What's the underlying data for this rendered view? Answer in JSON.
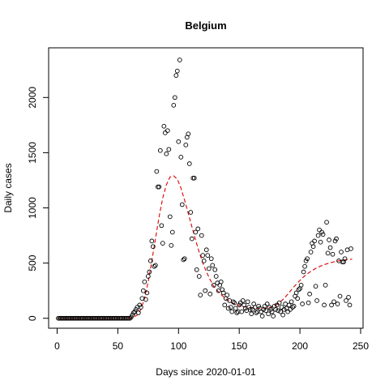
{
  "chart_data": {
    "type": "scatter",
    "title": "Belgium",
    "xlabel": "Days since 2020-01-01",
    "ylabel": "Daily cases",
    "xlim": [
      -7,
      252
    ],
    "ylim": [
      -90,
      2450
    ],
    "xticks": [
      0,
      50,
      100,
      150,
      200,
      250
    ],
    "yticks": [
      0,
      500,
      1000,
      1500,
      2000
    ],
    "grid": false,
    "series": [
      {
        "kind": "points",
        "marker": "open-circle",
        "color": "#000000",
        "points": [
          [
            1,
            0
          ],
          [
            2,
            0
          ],
          [
            3,
            0
          ],
          [
            4,
            0
          ],
          [
            5,
            0
          ],
          [
            6,
            0
          ],
          [
            7,
            0
          ],
          [
            8,
            0
          ],
          [
            9,
            0
          ],
          [
            10,
            0
          ],
          [
            11,
            0
          ],
          [
            12,
            0
          ],
          [
            13,
            0
          ],
          [
            14,
            0
          ],
          [
            15,
            0
          ],
          [
            16,
            0
          ],
          [
            17,
            0
          ],
          [
            18,
            0
          ],
          [
            19,
            0
          ],
          [
            20,
            0
          ],
          [
            21,
            0
          ],
          [
            22,
            0
          ],
          [
            23,
            0
          ],
          [
            24,
            0
          ],
          [
            25,
            0
          ],
          [
            26,
            0
          ],
          [
            27,
            0
          ],
          [
            28,
            0
          ],
          [
            29,
            0
          ],
          [
            30,
            0
          ],
          [
            31,
            0
          ],
          [
            32,
            0
          ],
          [
            33,
            0
          ],
          [
            34,
            0
          ],
          [
            35,
            0
          ],
          [
            36,
            0
          ],
          [
            37,
            0
          ],
          [
            38,
            0
          ],
          [
            39,
            0
          ],
          [
            40,
            0
          ],
          [
            41,
            0
          ],
          [
            42,
            0
          ],
          [
            43,
            0
          ],
          [
            44,
            0
          ],
          [
            45,
            0
          ],
          [
            46,
            0
          ],
          [
            47,
            0
          ],
          [
            48,
            0
          ],
          [
            49,
            0
          ],
          [
            50,
            0
          ],
          [
            51,
            0
          ],
          [
            52,
            0
          ],
          [
            53,
            0
          ],
          [
            54,
            0
          ],
          [
            55,
            0
          ],
          [
            56,
            0
          ],
          [
            57,
            0
          ],
          [
            58,
            0
          ],
          [
            59,
            0
          ],
          [
            60,
            0
          ],
          [
            61,
            10
          ],
          [
            62,
            30
          ],
          [
            63,
            50
          ],
          [
            64,
            60
          ],
          [
            65,
            80
          ],
          [
            66,
            100
          ],
          [
            67,
            50
          ],
          [
            68,
            120
          ],
          [
            69,
            100
          ],
          [
            70,
            180
          ],
          [
            71,
            250
          ],
          [
            72,
            330
          ],
          [
            73,
            170
          ],
          [
            74,
            230
          ],
          [
            75,
            380
          ],
          [
            76,
            420
          ],
          [
            77,
            520
          ],
          [
            78,
            700
          ],
          [
            79,
            650
          ],
          [
            80,
            470
          ],
          [
            81,
            480
          ],
          [
            82,
            1330
          ],
          [
            83,
            1190
          ],
          [
            84,
            1190
          ],
          [
            85,
            1520
          ],
          [
            86,
            840
          ],
          [
            87,
            680
          ],
          [
            88,
            1740
          ],
          [
            89,
            1680
          ],
          [
            90,
            1490
          ],
          [
            91,
            1700
          ],
          [
            92,
            1530
          ],
          [
            93,
            920
          ],
          [
            94,
            660
          ],
          [
            95,
            780
          ],
          [
            96,
            1930
          ],
          [
            97,
            2000
          ],
          [
            98,
            2200
          ],
          [
            99,
            2240
          ],
          [
            100,
            1600
          ],
          [
            101,
            2340
          ],
          [
            102,
            1460
          ],
          [
            103,
            1030
          ],
          [
            104,
            530
          ],
          [
            105,
            540
          ],
          [
            106,
            1570
          ],
          [
            107,
            1640
          ],
          [
            108,
            1670
          ],
          [
            109,
            1400
          ],
          [
            110,
            960
          ],
          [
            111,
            720
          ],
          [
            112,
            1270
          ],
          [
            113,
            1270
          ],
          [
            114,
            780
          ],
          [
            115,
            440
          ],
          [
            116,
            810
          ],
          [
            117,
            380
          ],
          [
            118,
            210
          ],
          [
            119,
            750
          ],
          [
            120,
            570
          ],
          [
            121,
            520
          ],
          [
            122,
            250
          ],
          [
            123,
            620
          ],
          [
            124,
            570
          ],
          [
            125,
            450
          ],
          [
            126,
            220
          ],
          [
            127,
            540
          ],
          [
            128,
            480
          ],
          [
            129,
            300
          ],
          [
            130,
            440
          ],
          [
            131,
            380
          ],
          [
            132,
            320
          ],
          [
            133,
            250
          ],
          [
            134,
            300
          ],
          [
            135,
            330
          ],
          [
            136,
            260
          ],
          [
            137,
            230
          ],
          [
            138,
            120
          ],
          [
            139,
            180
          ],
          [
            140,
            210
          ],
          [
            141,
            90
          ],
          [
            142,
            160
          ],
          [
            143,
            100
          ],
          [
            144,
            60
          ],
          [
            145,
            150
          ],
          [
            146,
            140
          ],
          [
            147,
            90
          ],
          [
            148,
            50
          ],
          [
            149,
            60
          ],
          [
            150,
            120
          ],
          [
            151,
            140
          ],
          [
            152,
            60
          ],
          [
            153,
            160
          ],
          [
            154,
            120
          ],
          [
            155,
            90
          ],
          [
            156,
            70
          ],
          [
            157,
            150
          ],
          [
            158,
            100
          ],
          [
            159,
            80
          ],
          [
            160,
            40
          ],
          [
            161,
            80
          ],
          [
            162,
            130
          ],
          [
            163,
            100
          ],
          [
            164,
            50
          ],
          [
            165,
            60
          ],
          [
            166,
            110
          ],
          [
            167,
            90
          ],
          [
            168,
            60
          ],
          [
            169,
            20
          ],
          [
            170,
            80
          ],
          [
            171,
            110
          ],
          [
            172,
            70
          ],
          [
            173,
            130
          ],
          [
            174,
            40
          ],
          [
            175,
            100
          ],
          [
            176,
            80
          ],
          [
            177,
            60
          ],
          [
            178,
            20
          ],
          [
            179,
            110
          ],
          [
            180,
            80
          ],
          [
            181,
            120
          ],
          [
            182,
            70
          ],
          [
            183,
            140
          ],
          [
            184,
            60
          ],
          [
            185,
            100
          ],
          [
            186,
            30
          ],
          [
            187,
            80
          ],
          [
            188,
            130
          ],
          [
            189,
            90
          ],
          [
            190,
            60
          ],
          [
            191,
            120
          ],
          [
            192,
            80
          ],
          [
            193,
            150
          ],
          [
            194,
            100
          ],
          [
            195,
            110
          ],
          [
            196,
            200
          ],
          [
            197,
            230
          ],
          [
            198,
            180
          ],
          [
            199,
            260
          ],
          [
            200,
            270
          ],
          [
            201,
            300
          ],
          [
            202,
            130
          ],
          [
            203,
            420
          ],
          [
            204,
            470
          ],
          [
            205,
            520
          ],
          [
            206,
            540
          ],
          [
            207,
            140
          ],
          [
            208,
            220
          ],
          [
            209,
            600
          ],
          [
            210,
            680
          ],
          [
            211,
            650
          ],
          [
            212,
            700
          ],
          [
            213,
            290
          ],
          [
            214,
            160
          ],
          [
            215,
            750
          ],
          [
            216,
            800
          ],
          [
            217,
            690
          ],
          [
            218,
            780
          ],
          [
            219,
            760
          ],
          [
            220,
            120
          ],
          [
            221,
            300
          ],
          [
            222,
            870
          ],
          [
            223,
            590
          ],
          [
            224,
            710
          ],
          [
            225,
            640
          ],
          [
            226,
            120
          ],
          [
            227,
            580
          ],
          [
            228,
            150
          ],
          [
            229,
            700
          ],
          [
            230,
            720
          ],
          [
            231,
            130
          ],
          [
            232,
            520
          ],
          [
            233,
            200
          ],
          [
            234,
            600
          ],
          [
            235,
            510
          ],
          [
            236,
            510
          ],
          [
            237,
            540
          ],
          [
            238,
            160
          ],
          [
            239,
            620
          ],
          [
            240,
            190
          ],
          [
            241,
            120
          ],
          [
            242,
            630
          ]
        ]
      },
      {
        "kind": "line",
        "style": "dashed",
        "color": "#dd0000",
        "points": [
          [
            0,
            0
          ],
          [
            10,
            0
          ],
          [
            20,
            0
          ],
          [
            30,
            0
          ],
          [
            40,
            0
          ],
          [
            50,
            0
          ],
          [
            55,
            0
          ],
          [
            60,
            2
          ],
          [
            63,
            10
          ],
          [
            66,
            30
          ],
          [
            69,
            80
          ],
          [
            72,
            180
          ],
          [
            75,
            330
          ],
          [
            78,
            520
          ],
          [
            81,
            720
          ],
          [
            84,
            920
          ],
          [
            87,
            1090
          ],
          [
            90,
            1210
          ],
          [
            93,
            1280
          ],
          [
            96,
            1290
          ],
          [
            99,
            1260
          ],
          [
            102,
            1180
          ],
          [
            105,
            1070
          ],
          [
            108,
            950
          ],
          [
            111,
            830
          ],
          [
            114,
            710
          ],
          [
            117,
            600
          ],
          [
            120,
            500
          ],
          [
            123,
            420
          ],
          [
            126,
            350
          ],
          [
            129,
            290
          ],
          [
            132,
            250
          ],
          [
            135,
            215
          ],
          [
            138,
            185
          ],
          [
            141,
            160
          ],
          [
            144,
            140
          ],
          [
            147,
            125
          ],
          [
            150,
            115
          ],
          [
            153,
            107
          ],
          [
            156,
            100
          ],
          [
            159,
            95
          ],
          [
            162,
            92
          ],
          [
            165,
            90
          ],
          [
            168,
            90
          ],
          [
            171,
            92
          ],
          [
            174,
            97
          ],
          [
            177,
            105
          ],
          [
            180,
            120
          ],
          [
            183,
            140
          ],
          [
            186,
            170
          ],
          [
            189,
            205
          ],
          [
            192,
            245
          ],
          [
            195,
            285
          ],
          [
            198,
            320
          ],
          [
            201,
            355
          ],
          [
            204,
            385
          ],
          [
            207,
            410
          ],
          [
            210,
            432
          ],
          [
            213,
            452
          ],
          [
            216,
            468
          ],
          [
            219,
            482
          ],
          [
            222,
            493
          ],
          [
            225,
            503
          ],
          [
            228,
            511
          ],
          [
            231,
            518
          ],
          [
            234,
            524
          ],
          [
            237,
            529
          ],
          [
            240,
            532
          ],
          [
            243,
            535
          ]
        ]
      }
    ]
  }
}
